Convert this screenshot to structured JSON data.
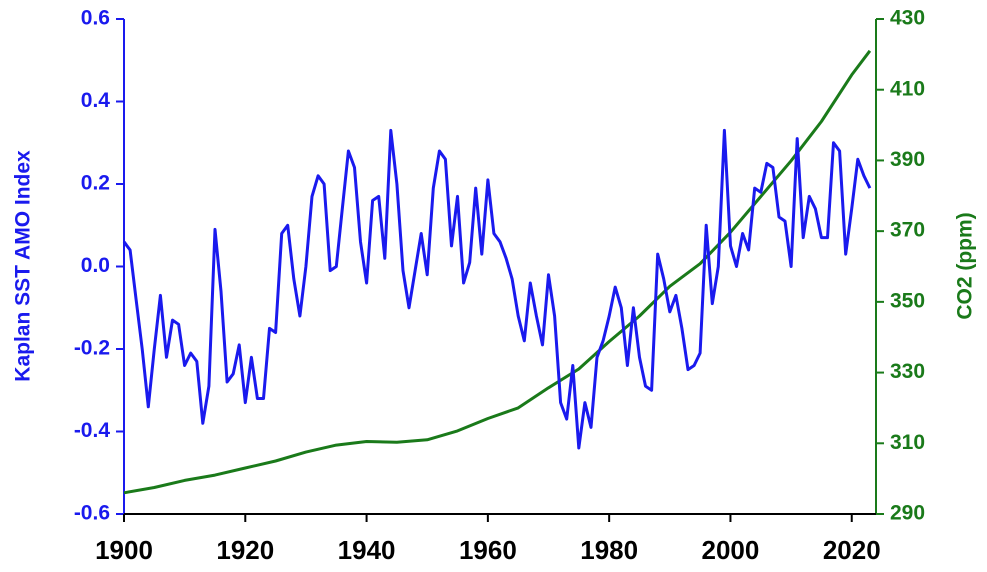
{
  "chart_data": {
    "type": "line",
    "ylabel": "Kaplan SST AMO Index",
    "y2label": "CO2 (ppm)",
    "xlim": [
      1900,
      2024
    ],
    "xticks": [
      1900,
      1920,
      1940,
      1960,
      1980,
      2000,
      2020
    ],
    "ylim": [
      -0.6,
      0.6
    ],
    "yticks": [
      {
        "value": -0.6,
        "label": "-0.6"
      },
      {
        "value": -0.4,
        "label": "-0.4"
      },
      {
        "value": -0.2,
        "label": "-0.2"
      },
      {
        "value": 0,
        "label": "0.0"
      },
      {
        "value": 0.2,
        "label": "0.2"
      },
      {
        "value": 0.4,
        "label": "0.4"
      },
      {
        "value": 0.6,
        "label": "0.6"
      }
    ],
    "y2lim": [
      290,
      430
    ],
    "y2ticks": [
      290,
      310,
      330,
      350,
      370,
      390,
      410,
      430
    ],
    "series": [
      {
        "name": "Kaplan SST AMO Index",
        "color": "#1a1aee",
        "x": [
          1900,
          1901,
          1902,
          1903,
          1904,
          1905,
          1906,
          1907,
          1908,
          1909,
          1910,
          1911,
          1912,
          1913,
          1914,
          1915,
          1916,
          1917,
          1918,
          1919,
          1920,
          1921,
          1922,
          1923,
          1924,
          1925,
          1926,
          1927,
          1928,
          1929,
          1930,
          1931,
          1932,
          1933,
          1934,
          1935,
          1936,
          1937,
          1938,
          1939,
          1940,
          1941,
          1942,
          1943,
          1944,
          1945,
          1946,
          1947,
          1948,
          1949,
          1950,
          1951,
          1952,
          1953,
          1954,
          1955,
          1956,
          1957,
          1958,
          1959,
          1960,
          1961,
          1962,
          1963,
          1964,
          1965,
          1966,
          1967,
          1968,
          1969,
          1970,
          1971,
          1972,
          1973,
          1974,
          1975,
          1976,
          1977,
          1978,
          1979,
          1980,
          1981,
          1982,
          1983,
          1984,
          1985,
          1986,
          1987,
          1988,
          1989,
          1990,
          1991,
          1992,
          1993,
          1994,
          1995,
          1996,
          1997,
          1998,
          1999,
          2000,
          2001,
          2002,
          2003,
          2004,
          2005,
          2006,
          2007,
          2008,
          2009,
          2010,
          2011,
          2012,
          2013,
          2014,
          2015,
          2016,
          2017,
          2018,
          2019,
          2020,
          2021,
          2022,
          2023
        ],
        "values": [
          0.06,
          0.04,
          -0.08,
          -0.2,
          -0.34,
          -0.2,
          -0.07,
          -0.22,
          -0.13,
          -0.14,
          -0.24,
          -0.21,
          -0.23,
          -0.38,
          -0.29,
          0.09,
          -0.06,
          -0.28,
          -0.26,
          -0.19,
          -0.33,
          -0.22,
          -0.32,
          -0.32,
          -0.15,
          -0.16,
          0.08,
          0.1,
          -0.03,
          -0.12,
          0.0,
          0.17,
          0.22,
          0.2,
          -0.01,
          0.0,
          0.14,
          0.28,
          0.24,
          0.06,
          -0.04,
          0.16,
          0.17,
          0.02,
          0.33,
          0.2,
          -0.01,
          -0.1,
          -0.01,
          0.08,
          -0.02,
          0.19,
          0.28,
          0.26,
          0.05,
          0.17,
          -0.04,
          0.01,
          0.19,
          0.03,
          0.21,
          0.08,
          0.06,
          0.02,
          -0.03,
          -0.12,
          -0.18,
          -0.04,
          -0.12,
          -0.19,
          -0.02,
          -0.12,
          -0.33,
          -0.37,
          -0.24,
          -0.44,
          -0.33,
          -0.39,
          -0.22,
          -0.18,
          -0.12,
          -0.05,
          -0.1,
          -0.24,
          -0.1,
          -0.22,
          -0.29,
          -0.3,
          0.03,
          -0.03,
          -0.11,
          -0.07,
          -0.15,
          -0.25,
          -0.24,
          -0.21,
          0.1,
          -0.09,
          0.0,
          0.33,
          0.05,
          0.0,
          0.08,
          0.04,
          0.19,
          0.18,
          0.25,
          0.24,
          0.12,
          0.11,
          0.0,
          0.31,
          0.07,
          0.17,
          0.14,
          0.07,
          0.07,
          0.3,
          0.28,
          0.03,
          0.14,
          0.26,
          0.22,
          0.19
        ]
      },
      {
        "name": "CO2 (ppm)",
        "color": "#1a7a1a",
        "axis": "y2",
        "x": [
          1900,
          1905,
          1910,
          1915,
          1920,
          1925,
          1930,
          1935,
          1940,
          1945,
          1950,
          1955,
          1960,
          1965,
          1970,
          1975,
          1980,
          1985,
          1990,
          1995,
          2000,
          2005,
          2010,
          2015,
          2020,
          2023
        ],
        "values": [
          296,
          297.5,
          299.5,
          301,
          303,
          305,
          307.5,
          309.5,
          310.5,
          310.3,
          311,
          313.5,
          317,
          320,
          325.7,
          331,
          338.8,
          346,
          354.4,
          360.8,
          369.7,
          379.8,
          389.9,
          401,
          414.2,
          421
        ]
      }
    ]
  }
}
